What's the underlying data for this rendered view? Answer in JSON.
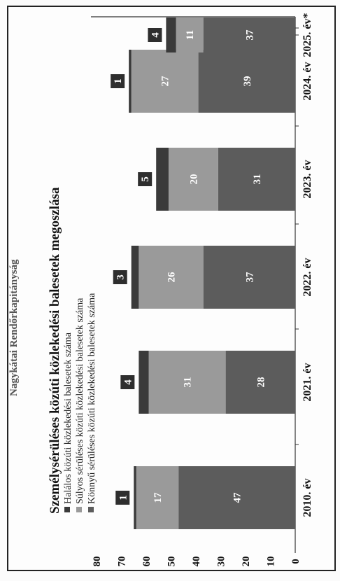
{
  "header": "Nagykátai Rendőrkapitányság",
  "colors": {
    "fatal": "#3a3a3a",
    "severe": "#9a9a9a",
    "light": "#5c5c5c",
    "label_box": "#2e2e2e"
  },
  "chart_data": {
    "type": "bar",
    "stacked": true,
    "title": "Személysérüléses közúti közlekedési balesetek megoszlása",
    "categories": [
      "2010. év",
      "2021. év",
      "2022. év",
      "2023. év",
      "2024. év",
      "2025. év*"
    ],
    "series": [
      {
        "name": "Könnyű sérüléses közúti közlekedési balesetek száma",
        "values": [
          47,
          28,
          37,
          31,
          39,
          37
        ]
      },
      {
        "name": "Súlyos sérüléses közúti közlekedési balesetek száma",
        "values": [
          17,
          31,
          26,
          20,
          27,
          11
        ]
      },
      {
        "name": "Halálos közúti közlekedési balesetek száma",
        "values": [
          1,
          4,
          3,
          5,
          1,
          4
        ]
      }
    ],
    "ylim": [
      0,
      80
    ],
    "yticks": [
      "0",
      "10",
      "20",
      "30",
      "40",
      "50",
      "60",
      "70",
      "80"
    ],
    "xlabel": "",
    "ylabel": "",
    "legend_position": "top-left"
  }
}
